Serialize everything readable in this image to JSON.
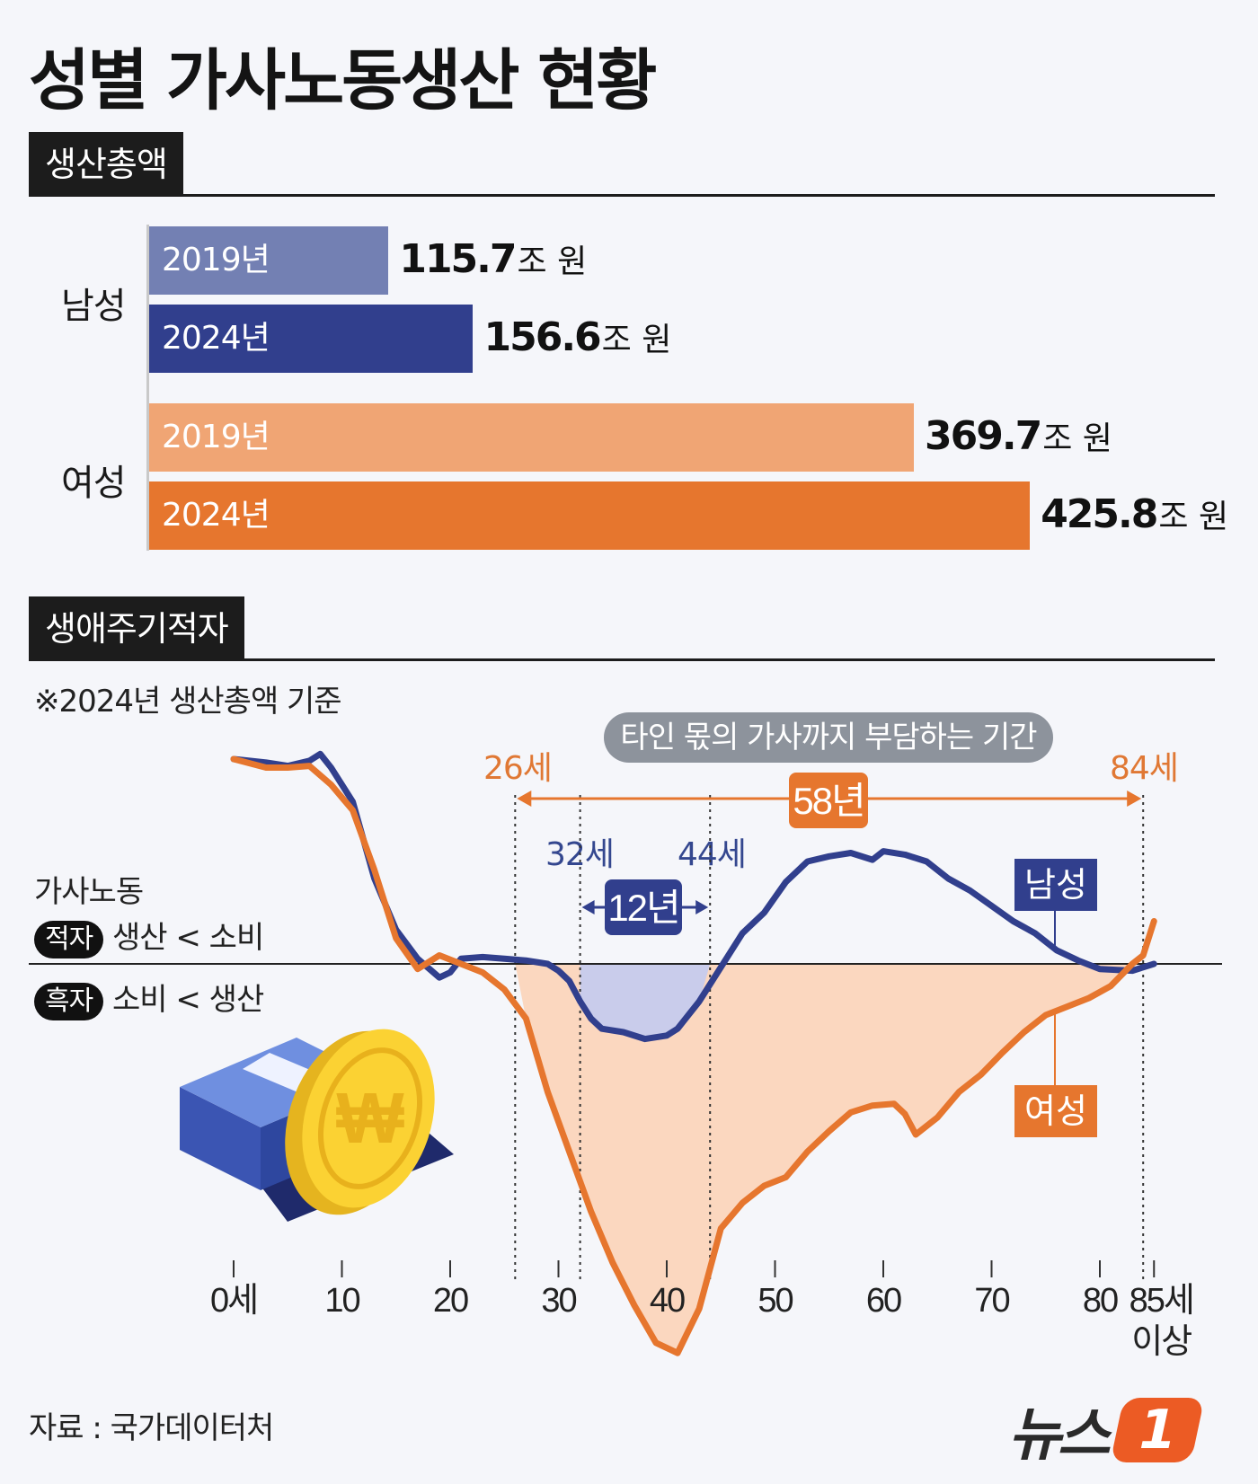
{
  "title": "성별 가사노동생산 현황",
  "section1": {
    "tag": "생산총액"
  },
  "section2": {
    "tag": "생애주기적자",
    "note": "※2024년 생산총액 기준"
  },
  "chart_data": [
    {
      "type": "bar",
      "groups": [
        {
          "label": "남성",
          "bars": [
            {
              "year": "2019년",
              "value": 115.7,
              "value_text": "115.7",
              "unit": "조 원",
              "color": "#7380b3"
            },
            {
              "year": "2024년",
              "value": 156.6,
              "value_text": "156.6",
              "unit": "조 원",
              "color": "#313f8d"
            }
          ]
        },
        {
          "label": "여성",
          "bars": [
            {
              "year": "2019년",
              "value": 369.7,
              "value_text": "369.7",
              "unit": "조 원",
              "color": "#f0a574"
            },
            {
              "year": "2024년",
              "value": 425.8,
              "value_text": "425.8",
              "unit": "조 원",
              "color": "#e6762e"
            }
          ]
        }
      ]
    },
    {
      "type": "line",
      "x_ticks": [
        "0세",
        "10",
        "20",
        "30",
        "40",
        "50",
        "60",
        "70",
        "80",
        "85세"
      ],
      "x_tick_last_sub": "이상",
      "xlim": [
        0,
        85
      ],
      "ylim": [
        -25,
        15
      ],
      "y_top_label": "가사노동",
      "deficit_tag": "적자",
      "deficit_text": "생산 < 소비",
      "surplus_tag": "흑자",
      "surplus_text": "소비 < 생산",
      "series": [
        {
          "name": "남성",
          "color": "#313f8d",
          "points": [
            [
              0,
              12
            ],
            [
              3,
              11.8
            ],
            [
              5,
              11.6
            ],
            [
              7,
              11.9
            ],
            [
              8,
              12.3
            ],
            [
              9,
              11.5
            ],
            [
              11,
              9.5
            ],
            [
              13,
              5
            ],
            [
              15,
              2
            ],
            [
              17,
              0.3
            ],
            [
              19,
              -0.8
            ],
            [
              20,
              -0.5
            ],
            [
              21,
              0.3
            ],
            [
              23,
              0.4
            ],
            [
              25,
              0.3
            ],
            [
              27,
              0.2
            ],
            [
              29,
              0
            ],
            [
              30,
              -0.4
            ],
            [
              31,
              -1
            ],
            [
              32,
              -2.2
            ],
            [
              33,
              -3.2
            ],
            [
              34,
              -3.8
            ],
            [
              36,
              -4
            ],
            [
              38,
              -4.4
            ],
            [
              40,
              -4.2
            ],
            [
              41,
              -3.8
            ],
            [
              43,
              -2.2
            ],
            [
              45,
              -0.2
            ],
            [
              47,
              1.8
            ],
            [
              49,
              3
            ],
            [
              51,
              4.8
            ],
            [
              53,
              6
            ],
            [
              55,
              6.3
            ],
            [
              57,
              6.5
            ],
            [
              59,
              6.1
            ],
            [
              60,
              6.6
            ],
            [
              62,
              6.4
            ],
            [
              64,
              6
            ],
            [
              66,
              5
            ],
            [
              68,
              4.3
            ],
            [
              70,
              3.4
            ],
            [
              72,
              2.5
            ],
            [
              74,
              1.8
            ],
            [
              76,
              0.8
            ],
            [
              78,
              0.2
            ],
            [
              80,
              -0.3
            ],
            [
              83,
              -0.4
            ],
            [
              85,
              0
            ]
          ]
        },
        {
          "name": "여성",
          "color": "#e6762e",
          "points": [
            [
              0,
              12
            ],
            [
              3,
              11.5
            ],
            [
              5,
              11.5
            ],
            [
              7,
              11.6
            ],
            [
              9,
              10.5
            ],
            [
              11,
              9
            ],
            [
              13,
              5.5
            ],
            [
              15,
              1.5
            ],
            [
              17,
              -0.3
            ],
            [
              19,
              0.5
            ],
            [
              21,
              0
            ],
            [
              23,
              -0.5
            ],
            [
              25,
              -1.5
            ],
            [
              27,
              -3.2
            ],
            [
              29,
              -7.5
            ],
            [
              31,
              -11
            ],
            [
              33,
              -14.5
            ],
            [
              35,
              -17.5
            ],
            [
              37,
              -20
            ],
            [
              39,
              -22.2
            ],
            [
              41,
              -22.8
            ],
            [
              43,
              -20.2
            ],
            [
              45,
              -15.5
            ],
            [
              47,
              -14
            ],
            [
              49,
              -13
            ],
            [
              51,
              -12.5
            ],
            [
              53,
              -11
            ],
            [
              55,
              -9.8
            ],
            [
              57,
              -8.7
            ],
            [
              59,
              -8.3
            ],
            [
              61,
              -8.2
            ],
            [
              62,
              -8.8
            ],
            [
              63,
              -10
            ],
            [
              65,
              -9
            ],
            [
              67,
              -7.5
            ],
            [
              69,
              -6.5
            ],
            [
              71,
              -5.2
            ],
            [
              73,
              -4
            ],
            [
              75,
              -3
            ],
            [
              77,
              -2.5
            ],
            [
              79,
              -2
            ],
            [
              81,
              -1.3
            ],
            [
              83,
              0
            ],
            [
              84,
              0.5
            ],
            [
              85,
              2.5
            ]
          ]
        }
      ],
      "annotations": {
        "burden_label": "타인 몫의 가사까지 부담하는 기간",
        "female_start": "26세",
        "female_end": "84세",
        "female_span": "58년",
        "male_start": "32세",
        "male_end": "44세",
        "male_span": "12년",
        "female_range": [
          26,
          84
        ],
        "male_range": [
          32,
          44
        ]
      }
    }
  ],
  "source": "자료 : 국가데이터처",
  "logo": {
    "text": "뉴스",
    "mark": "1"
  }
}
